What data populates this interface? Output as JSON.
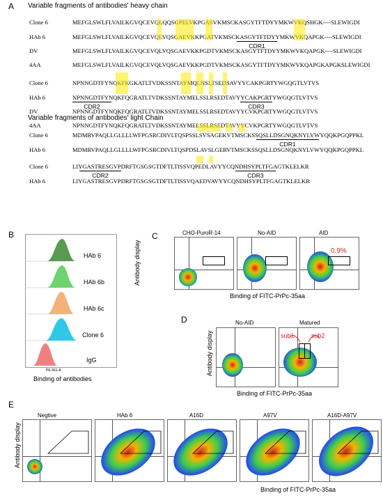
{
  "panels": {
    "a": "A",
    "b": "B",
    "c": "C",
    "d": "D",
    "e": "E"
  },
  "heavy": {
    "title": "Variable fragments of antibodies' heavy chain",
    "block1": [
      {
        "name": "Clone 6",
        "seq": "MEFGLSWLFLVAILKGVQCEVQLQQSGPELVKPGASVKMSCKASGYTFTDYYMKWVKQSHGK----SLEWIGDI"
      },
      {
        "name": "HAb 6",
        "seq": "MEFGLSWLFLVAILKGVQCEVQLVQSGAEVKKPGATVKMSCKASGYTFTDYYMKWVKQAPGK----SLEWIGDI"
      },
      {
        "name": "DV",
        "seq": "MEFGLSWLFLVAILKGVQCEVQLVQSGAEVKKPGDTVKMSCKASGYTFTDYYMKWVKQAPGK----SLEWIGDI"
      },
      {
        "name": "4AA",
        "seq": "MEFGLSWLFLVAILKGVQCEVQLVQSGAEVKKPGDTVKMSCKASGYTFTDYYMKWVKQAPGKAPGKSLEWIGDI"
      }
    ],
    "cdr1": "CDR1",
    "block2": [
      {
        "name": "Clone 6",
        "seq": "NPNNGDTFYNQKFKGKATLTVDKSSNTAYMQLNSLTSEDSAVYYCAKPGRTYWGQGTLVTVS"
      },
      {
        "name": "HAb 6",
        "seq": "NPNNGDTFYNQKFQGRATLTVDKSSNTAYMELSSLRSEDTAVYYCAKPGRTYWGQGTLVTVS"
      },
      {
        "name": "DV",
        "seq": "NPNNGDTFYNQKFQGRATLTVDKSSNTAYMELSSLRSEDTAVYYCVKPGRTYWGQGTLVTVS"
      },
      {
        "name": "4AA",
        "seq": "NPNNGDTFYNQKFQGRATLTVDKSSNTAYMELSSLRSEDTAVYYCVKPGRTYWGQGTLVTVS"
      }
    ],
    "cdr2": "CDR2",
    "cdr3": "CDR3"
  },
  "light": {
    "title": "Variable fragments of antibodies' light Chain",
    "block1": [
      {
        "name": "Clone 6",
        "seq": "MDMRVPAQLLGLLLLWFPGSRCDIVLTQSPSSLSVSAGEKVTMSCKSSQSLLDSGNQKNYLVWYQQKPGQPPKL"
      },
      {
        "name": "HAb 6",
        "seq": "MDMRVPAQLLGLLLLWFPGSRCDIVLTQSPDSLAVSLGERVTMSCKSSQSLLDSGNQKNYLVWYQQKPGQPPKL"
      }
    ],
    "cdr1": "CDR1",
    "block2": [
      {
        "name": "Clone 6",
        "seq": "LIYGASTRESGVPDRFTGSGSGTDFTLTISSVQPEDLAVYYCQNDHSYPLTFGAGTKLELKR"
      },
      {
        "name": "HAb 6",
        "seq": "LIYGASTRESGVPDRFTGSGSGTDFTLTISSVQAEDVAVYYCQNDHSYPLTFGAGTKLELKR"
      }
    ],
    "cdr2": "CDR2",
    "cdr3": "CDR3"
  },
  "histogram": {
    "labels": [
      "HAb 6",
      "HAb 6b",
      "HAb 6c",
      "Clone 6",
      "IgG"
    ],
    "colors": [
      "#5a9a50",
      "#6fd36f",
      "#f4b27a",
      "#2ec8e8",
      "#f08080"
    ],
    "xaxis_tick": "PE-561-A",
    "xlabel": "Binding of antibodies"
  },
  "panelC": {
    "titles": [
      "CHO-PuroR-14",
      "No-AID",
      "AID"
    ],
    "percent": "0.9%",
    "ylabel": "Antibody display",
    "xlabel": "Binding of FITC-PrPc-35aa"
  },
  "panelD": {
    "titles": [
      "No-AID",
      "Matured"
    ],
    "sub1": "sub1",
    "sub2": "sub2",
    "ylabel": "Antibody display",
    "xlabel": "Binding of FITC-PrPc-35aa"
  },
  "panelE": {
    "titles": [
      "Negtive",
      "HAb 6",
      "A16D",
      "A97V",
      "A16D-A97V"
    ],
    "ylabel": "Antibody display",
    "xlabel": "Binding of FITC-PrPc-35aa"
  }
}
